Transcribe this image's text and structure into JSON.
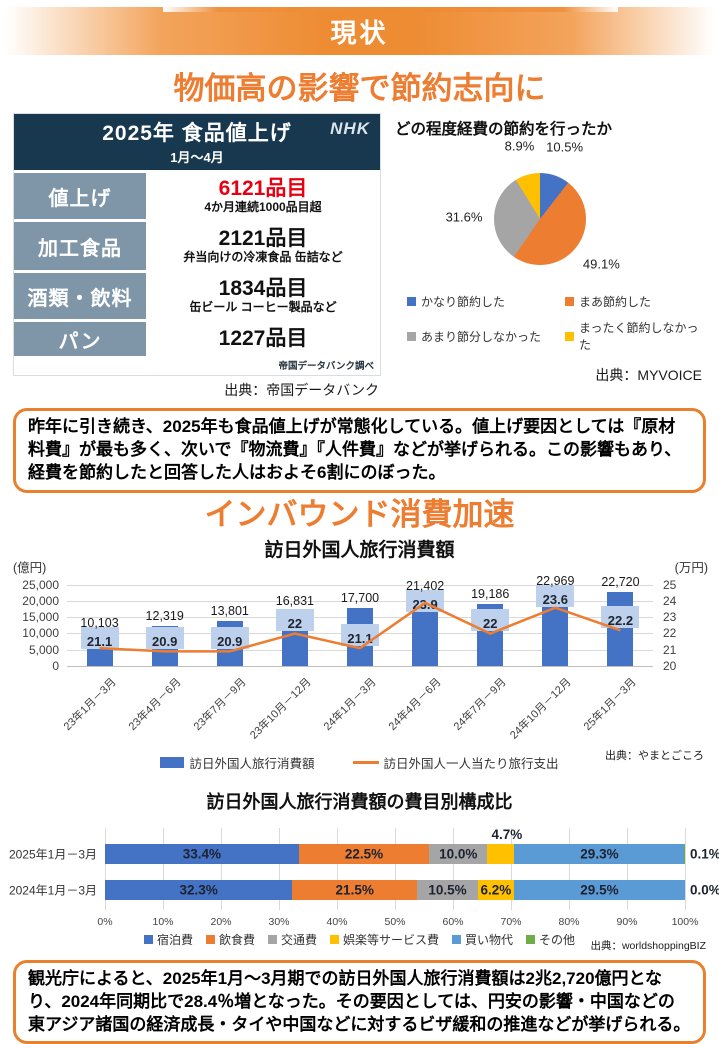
{
  "header": {
    "banner_title": "現状"
  },
  "section1": {
    "title": "物価高の影響で節約志向に",
    "table": {
      "title": "2025年 食品値上げ",
      "subtitle": "1月～4月",
      "logo": "NHK",
      "rows": [
        {
          "label": "値上げ",
          "value": "6121品目",
          "emphasis": true,
          "note": "4か月連続1000品目超"
        },
        {
          "label": "加工食品",
          "value": "2121品目",
          "emphasis": false,
          "note": "弁当向けの冷凍食品 缶詰など"
        },
        {
          "label": "酒類・飲料",
          "value": "1834品目",
          "emphasis": false,
          "note": "缶ビール コーヒー製品など"
        },
        {
          "label": "パン",
          "value": "1227品目",
          "emphasis": false,
          "note": ""
        }
      ],
      "credit": "帝国データバンク調べ",
      "source": "出典：帝国データバンク"
    },
    "note_box": "昨年に引き続き、2025年も食品値上げが常態化している。値上げ要因としては『原材料費』が最も多く、次いで『物流費』『人件費』などが挙げられる。この影響もあり、経費を節約したと回答した人はおよそ6割にのぼった。"
  },
  "section2": {
    "title": "インバウンド消費加速",
    "note_box": "観光庁によると、2025年1月～3月期での訪日外国人旅行消費額は2兆2,720億円となり、2024年同期比で28.4％増となった。その要因としては、円安の影響・中国などの東アジア諸国の経済成長・タイや中国などに対するビザ緩和の推進などが挙げられる。"
  },
  "chart_data": [
    {
      "type": "pie",
      "title": "どの程度経費の節約を行ったか",
      "labels": [
        "かなり節約した",
        "まあ節約した",
        "あまり節分しなかった",
        "まったく節約しなかった"
      ],
      "values": [
        10.5,
        49.1,
        31.6,
        8.9
      ],
      "colors": [
        "#4472C4",
        "#ED7D31",
        "#A5A5A5",
        "#FFC000"
      ],
      "legend_position": "bottom",
      "source": "出典：MYVOICE"
    },
    {
      "type": "bar+line",
      "title": "訪日外国人旅行消費額",
      "left_axis": {
        "label": "(億円)",
        "min": 0,
        "max": 25000,
        "step": 5000
      },
      "right_axis": {
        "label": "(万円)",
        "min": 20,
        "max": 25,
        "step": 1
      },
      "categories": [
        "23年1月－3月",
        "23年4月－6月",
        "23年7月－9月",
        "23年10月－12月",
        "24年1月－3月",
        "24年4月－6月",
        "24年7月－9月",
        "24年10月－12月",
        "25年1月－3月"
      ],
      "series": [
        {
          "name": "訪日外国人旅行消費額",
          "kind": "bar",
          "axis": "left",
          "color": "#4472C4",
          "values": [
            10103,
            12319,
            13801,
            16831,
            17700,
            21402,
            19186,
            22969,
            22720
          ]
        },
        {
          "name": "訪日外国人一人当たり旅行支出",
          "kind": "line",
          "axis": "right",
          "color": "#ED7D31",
          "label_bg": "#BDD0EC",
          "values": [
            21.1,
            20.9,
            20.9,
            22,
            21.1,
            23.9,
            22,
            23.6,
            22.2
          ]
        }
      ],
      "grid": true,
      "legend_position": "bottom",
      "source": "出典：やまとごころ"
    },
    {
      "type": "stacked-bar-horizontal",
      "title": "訪日外国人旅行消費額の費目別構成比",
      "categories": [
        "2025年1月－3月",
        "2024年1月－3月"
      ],
      "x_axis": {
        "min": 0,
        "max": 100,
        "step": 10,
        "suffix": "%"
      },
      "series": [
        {
          "name": "宿泊費",
          "color": "#4472C4",
          "values": [
            33.4,
            32.3
          ]
        },
        {
          "name": "飲食費",
          "color": "#ED7D31",
          "values": [
            22.5,
            21.5
          ]
        },
        {
          "name": "交通費",
          "color": "#A5A5A5",
          "values": [
            10.0,
            10.5
          ]
        },
        {
          "name": "娯楽等サービス費",
          "color": "#FFC000",
          "values": [
            4.7,
            6.2
          ]
        },
        {
          "name": "買い物代",
          "color": "#5B9BD5",
          "values": [
            29.3,
            29.5
          ]
        },
        {
          "name": "その他",
          "color": "#70AD47",
          "values": [
            0.1,
            0.0
          ]
        }
      ],
      "legend_position": "bottom",
      "source": "出典：worldshoppingBIZ"
    }
  ]
}
